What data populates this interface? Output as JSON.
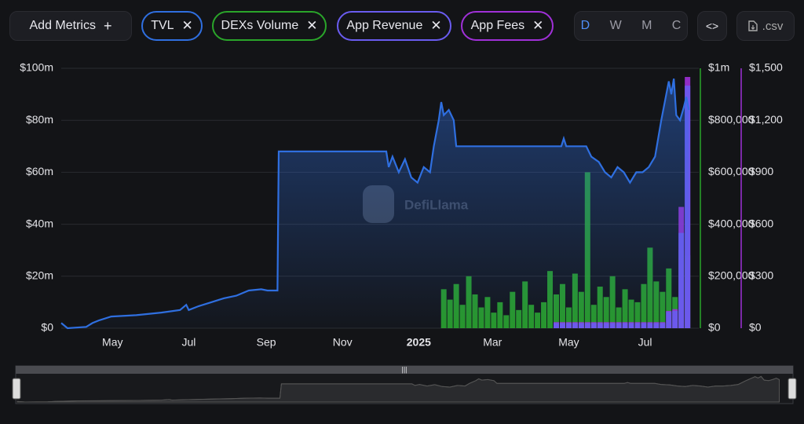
{
  "toolbar": {
    "add_metrics": "Add Metrics",
    "periods": [
      "D",
      "W",
      "M",
      "C"
    ],
    "embed": "<>",
    "csv": ".csv"
  },
  "chart_data": {
    "type": "line",
    "watermark": "DefiLlama",
    "xlim": [
      0,
      510
    ],
    "xticks": [
      {
        "value": 41,
        "label": "May"
      },
      {
        "value": 102,
        "label": "Jul"
      },
      {
        "value": 164,
        "label": "Sep"
      },
      {
        "value": 225,
        "label": "Nov"
      },
      {
        "value": 286,
        "label": "2025"
      },
      {
        "value": 345,
        "label": "Mar"
      },
      {
        "value": 406,
        "label": "May"
      },
      {
        "value": 467,
        "label": "Jul"
      }
    ],
    "ylim": [
      0,
      100
    ],
    "yticks": [
      {
        "value": 0,
        "label": "$0"
      },
      {
        "value": 20,
        "label": "$20m"
      },
      {
        "value": 40,
        "label": "$40m"
      },
      {
        "value": 60,
        "label": "$60m"
      },
      {
        "value": 80,
        "label": "$80m"
      },
      {
        "value": 100,
        "label": "$100m"
      }
    ],
    "y2lim": [
      0,
      1000000
    ],
    "y2ticks": [
      {
        "value": 0,
        "label": "$0"
      },
      {
        "value": 200000,
        "label": "$200,000"
      },
      {
        "value": 400000,
        "label": "$400,000"
      },
      {
        "value": 600000,
        "label": "$600,000"
      },
      {
        "value": 800000,
        "label": "$800,000"
      },
      {
        "value": 1000000,
        "label": "$1m"
      }
    ],
    "y3lim": [
      0,
      1500
    ],
    "y3ticks": [
      {
        "value": 0,
        "label": "$0"
      },
      {
        "value": 300,
        "label": "$300"
      },
      {
        "value": 600,
        "label": "$600"
      },
      {
        "value": 900,
        "label": "$900"
      },
      {
        "value": 1200,
        "label": "$1,200"
      },
      {
        "value": 1500,
        "label": "$1,500"
      }
    ],
    "grid": true,
    "series": [
      {
        "name": "TVL",
        "type": "line",
        "axis": "y",
        "color": "#2f6fe0",
        "x": [
          0,
          5,
          20,
          25,
          30,
          40,
          60,
          80,
          95,
          100,
          102,
          110,
          120,
          130,
          140,
          150,
          160,
          165,
          173,
          174,
          260,
          262,
          265,
          270,
          275,
          280,
          285,
          290,
          295,
          298,
          302,
          304,
          306,
          310,
          314,
          316,
          400,
          402,
          404,
          420,
          424,
          430,
          435,
          440,
          445,
          450,
          455,
          460,
          465,
          470,
          475,
          480,
          484,
          486,
          488,
          490,
          492,
          495,
          498,
          500,
          502
        ],
        "values": [
          2,
          0,
          0.5,
          2,
          3,
          4.5,
          5,
          6,
          7,
          9,
          7,
          8.5,
          10,
          11.5,
          12.5,
          14.5,
          15,
          14.5,
          14.5,
          68,
          68,
          62,
          66,
          60,
          65,
          58,
          56,
          62,
          60,
          70,
          80,
          87,
          82,
          84,
          80,
          70,
          70,
          73,
          70,
          70,
          66,
          64,
          60,
          58,
          62,
          60,
          56,
          60,
          60,
          62,
          66,
          80,
          90,
          95,
          90,
          96,
          82,
          80,
          85,
          89,
          84
        ]
      },
      {
        "name": "DEXs Volume",
        "type": "bar",
        "axis": "y2",
        "color": "#2aa52a",
        "x": [
          306,
          311,
          316,
          321,
          326,
          331,
          336,
          341,
          346,
          351,
          356,
          361,
          366,
          371,
          376,
          381,
          386,
          391,
          396,
          401,
          406,
          411,
          416,
          421,
          426,
          431,
          436,
          441,
          446,
          451,
          456,
          461,
          466,
          471,
          476,
          481,
          486,
          491,
          496,
          501
        ],
        "values": [
          150000,
          110000,
          170000,
          90000,
          200000,
          130000,
          80000,
          120000,
          60000,
          100000,
          50000,
          140000,
          70000,
          180000,
          90000,
          60000,
          100000,
          220000,
          130000,
          170000,
          80000,
          210000,
          140000,
          600000,
          90000,
          160000,
          120000,
          200000,
          80000,
          150000,
          110000,
          100000,
          170000,
          310000,
          180000,
          140000,
          230000,
          120000,
          300000,
          280000
        ]
      },
      {
        "name": "App Revenue",
        "type": "bar",
        "axis": "y3",
        "color": "#6a5cf0",
        "x": [
          306,
          311,
          316,
          321,
          326,
          331,
          336,
          341,
          346,
          351,
          356,
          361,
          366,
          371,
          376,
          381,
          386,
          391,
          396,
          401,
          406,
          411,
          416,
          421,
          426,
          431,
          436,
          441,
          446,
          451,
          456,
          461,
          466,
          471,
          476,
          481,
          486,
          491,
          496,
          501
        ],
        "values": [
          null,
          null,
          null,
          null,
          null,
          null,
          null,
          null,
          null,
          null,
          null,
          null,
          null,
          null,
          null,
          null,
          null,
          null,
          30,
          30,
          30,
          30,
          30,
          30,
          30,
          30,
          30,
          30,
          30,
          30,
          30,
          30,
          30,
          30,
          30,
          30,
          95,
          100,
          550,
          1400
        ]
      },
      {
        "name": "App Fees",
        "type": "bar",
        "axis": "y3",
        "color": "#a030d8",
        "x": [
          306,
          311,
          316,
          321,
          326,
          331,
          336,
          341,
          346,
          351,
          356,
          361,
          366,
          371,
          376,
          381,
          386,
          391,
          396,
          401,
          406,
          411,
          416,
          421,
          426,
          431,
          436,
          441,
          446,
          451,
          456,
          461,
          466,
          471,
          476,
          481,
          486,
          491,
          496,
          501
        ],
        "values": [
          null,
          null,
          null,
          null,
          null,
          null,
          null,
          null,
          null,
          null,
          null,
          null,
          null,
          null,
          null,
          null,
          null,
          null,
          35,
          35,
          35,
          35,
          35,
          35,
          35,
          35,
          35,
          35,
          35,
          35,
          35,
          35,
          35,
          35,
          35,
          35,
          100,
          110,
          700,
          1450
        ]
      }
    ]
  }
}
